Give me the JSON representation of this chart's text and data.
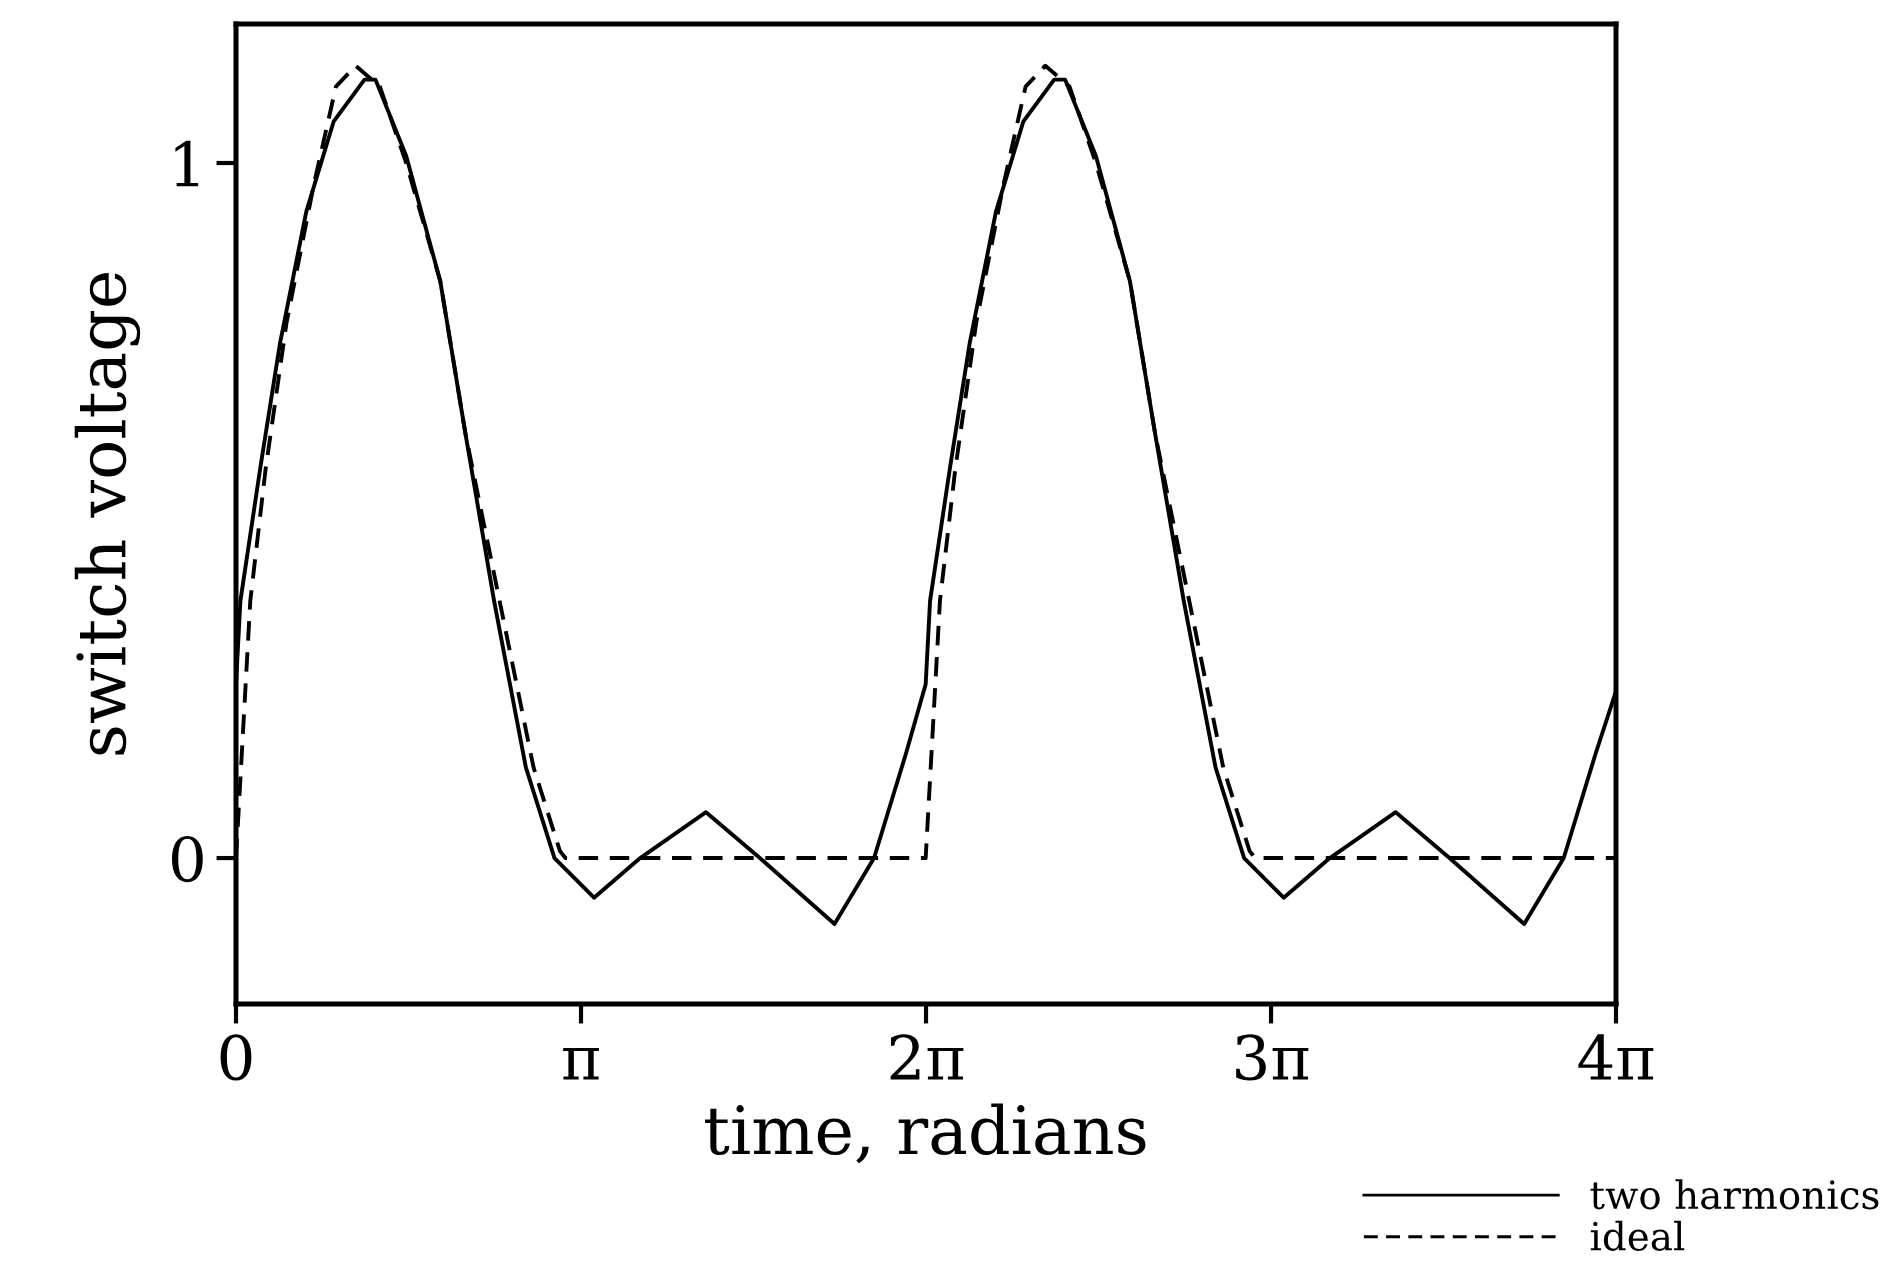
{
  "chart_data": {
    "type": "line",
    "xlabel": "time, radians",
    "ylabel": "switch voltage",
    "xlim": [
      0,
      12.566
    ],
    "ylim": [
      -0.21,
      1.2
    ],
    "xticks": [
      0,
      {
        "value": 3.1416,
        "label": "π"
      },
      {
        "value": 6.2832,
        "label": "2π"
      },
      {
        "value": 9.4248,
        "label": "3π"
      },
      {
        "value": 12.566,
        "label": "4π"
      }
    ],
    "yticks": [
      0,
      1
    ],
    "grid": false,
    "legend": "bottom right",
    "marker": "none",
    "series": [
      {
        "name": "two harmonics",
        "color": "#000000",
        "line_style": "solid",
        "x": [
          0,
          0.04,
          0.22,
          0.4,
          0.64,
          0.89,
          1.17,
          1.27,
          1.55,
          1.86,
          2.09,
          2.35,
          2.64,
          2.9,
          3.26,
          3.68,
          4.28,
          4.77,
          5.45,
          5.81,
          6.1,
          6.28,
          6.32,
          6.5,
          6.68,
          6.92,
          7.17,
          7.45,
          7.55,
          7.83,
          8.14,
          8.37,
          8.63,
          8.92,
          9.18,
          9.54,
          9.96,
          10.56,
          11.05,
          11.73,
          12.09,
          12.38,
          12.566
        ],
        "values": [
          0.25,
          0.37,
          0.56,
          0.74,
          0.93,
          1.06,
          1.12,
          1.12,
          1.01,
          0.83,
          0.61,
          0.37,
          0.13,
          0.0,
          -0.057,
          0.0,
          0.066,
          0.0,
          -0.095,
          0.0,
          0.15,
          0.25,
          0.37,
          0.56,
          0.74,
          0.93,
          1.06,
          1.12,
          1.12,
          1.01,
          0.83,
          0.61,
          0.37,
          0.13,
          0.0,
          -0.057,
          0.0,
          0.066,
          0.0,
          -0.095,
          0.0,
          0.15,
          0.24
        ]
      },
      {
        "name": "ideal",
        "color": "#000000",
        "line_style": "dashed",
        "x": [
          0,
          0.13,
          0.27,
          0.46,
          0.71,
          0.91,
          1.09,
          1.31,
          1.55,
          1.86,
          2.09,
          2.4,
          2.71,
          2.95,
          3.0,
          6.28,
          6.41,
          6.55,
          6.74,
          6.99,
          7.19,
          7.37,
          7.59,
          7.83,
          8.14,
          8.37,
          8.68,
          8.99,
          9.23,
          9.28,
          12.566
        ],
        "values": [
          0,
          0.37,
          0.56,
          0.77,
          0.97,
          1.11,
          1.14,
          1.11,
          1.0,
          0.83,
          0.61,
          0.37,
          0.13,
          0.01,
          0,
          0,
          0.37,
          0.56,
          0.77,
          0.97,
          1.11,
          1.14,
          1.11,
          1.0,
          0.83,
          0.61,
          0.37,
          0.13,
          0.01,
          0,
          0
        ]
      }
    ]
  }
}
